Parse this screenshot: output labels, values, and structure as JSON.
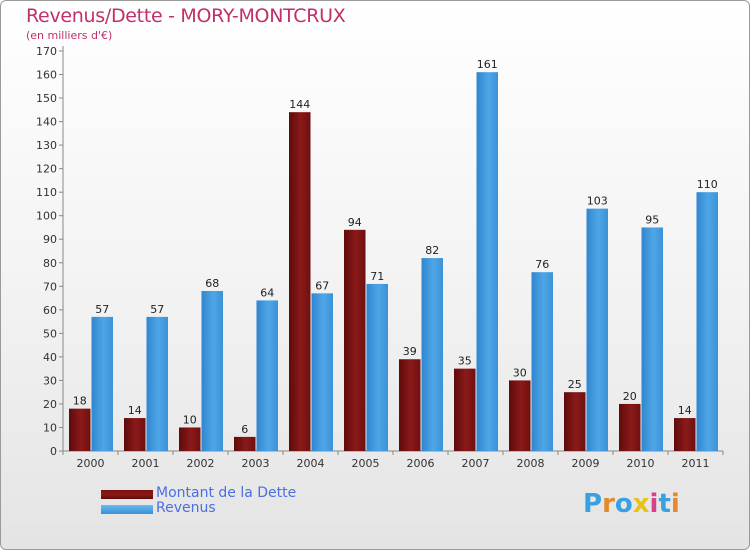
{
  "title": "Revenus/Dette - MORY-MONTCRUX",
  "subtitle": "(en milliers d'€)",
  "colors": {
    "title": "#c0306a",
    "debt": "#8b1a1a",
    "revenue": "#4fa6e6",
    "legend_text": "#4a6fe0"
  },
  "brand": {
    "text": "Proxiti",
    "letter_colors": [
      "#3aa0e0",
      "#e58a2a",
      "#3aa0e0",
      "#e8c21a",
      "#d9408a",
      "#3aa0e0",
      "#e58a2a"
    ]
  },
  "chart_data": {
    "type": "bar",
    "title": "Revenus/Dette - MORY-MONTCRUX",
    "ylabel": "(en milliers d'€)",
    "xlabel": "",
    "categories": [
      "2000",
      "2001",
      "2002",
      "2003",
      "2004",
      "2005",
      "2006",
      "2007",
      "2008",
      "2009",
      "2010",
      "2011"
    ],
    "series": [
      {
        "name": "Montant de la Dette",
        "values": [
          18,
          14,
          10,
          6,
          144,
          94,
          39,
          35,
          30,
          25,
          20,
          14
        ]
      },
      {
        "name": "Revenus",
        "values": [
          57,
          57,
          68,
          64,
          67,
          71,
          82,
          161,
          76,
          103,
          95,
          110
        ]
      }
    ],
    "ylim": [
      0,
      170
    ],
    "yticks": [
      0,
      10,
      20,
      30,
      40,
      50,
      60,
      70,
      80,
      90,
      100,
      110,
      120,
      130,
      140,
      150,
      160,
      170
    ],
    "grid": false,
    "legend": "bottom-left"
  }
}
